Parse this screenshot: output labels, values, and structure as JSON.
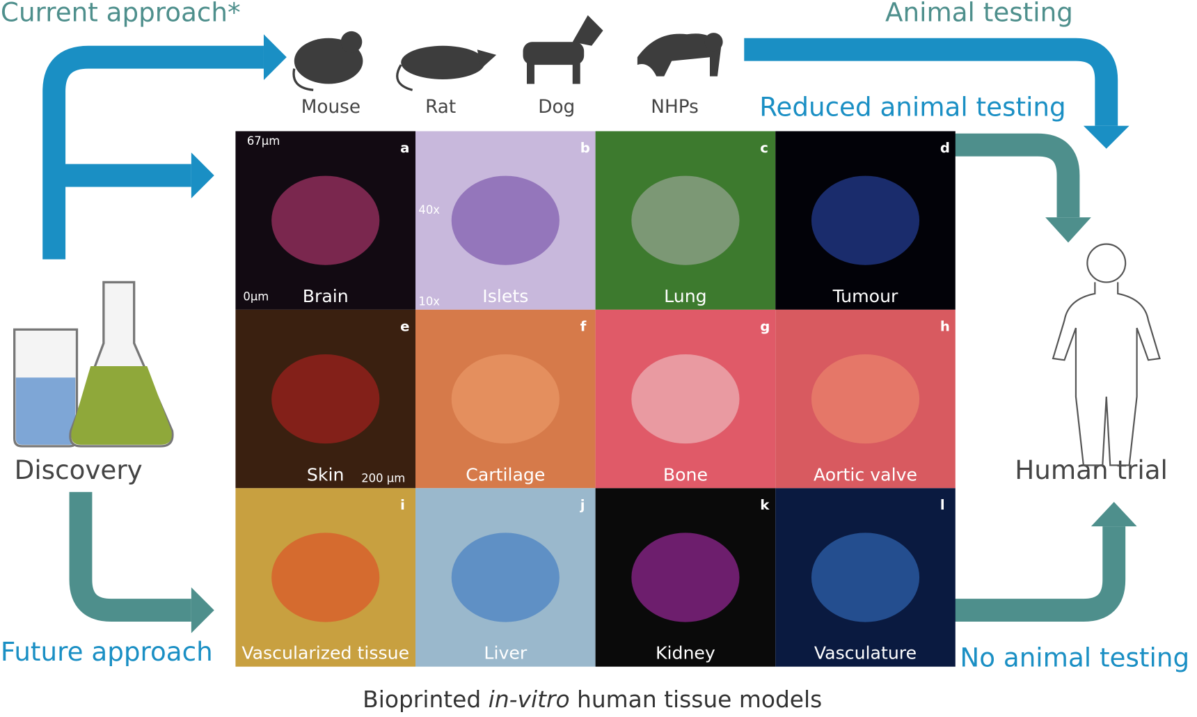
{
  "labels": {
    "current_approach": "Current approach*",
    "animal_testing": "Animal testing",
    "reduced_animal_testing": "Reduced animal testing",
    "discovery": "Discovery",
    "human_trial": "Human trial",
    "future_approach": "Future approach",
    "no_animal_testing": "No animal testing"
  },
  "animals": [
    "Mouse",
    "Rat",
    "Dog",
    "NHPs"
  ],
  "tiles": [
    {
      "letter": "a",
      "label": "Brain"
    },
    {
      "letter": "b",
      "label": "Islets"
    },
    {
      "letter": "c",
      "label": "Lung"
    },
    {
      "letter": "d",
      "label": "Tumour"
    },
    {
      "letter": "e",
      "label": "Skin"
    },
    {
      "letter": "f",
      "label": "Cartilage"
    },
    {
      "letter": "g",
      "label": "Bone"
    },
    {
      "letter": "h",
      "label": "Aortic valve"
    },
    {
      "letter": "i",
      "label": "Vascularized tissue"
    },
    {
      "letter": "j",
      "label": "Liver"
    },
    {
      "letter": "k",
      "label": "Kidney"
    },
    {
      "letter": "l",
      "label": "Vasculature"
    }
  ],
  "tile_annotations": {
    "brain_top": "67μm",
    "brain_bottom": "0μm",
    "islets_inset": "40x",
    "islets_main": "10x",
    "skin_scale": "200 μm"
  },
  "caption": {
    "before": "Bioprinted ",
    "italic": "in-vitro",
    "after": " human tissue models"
  }
}
